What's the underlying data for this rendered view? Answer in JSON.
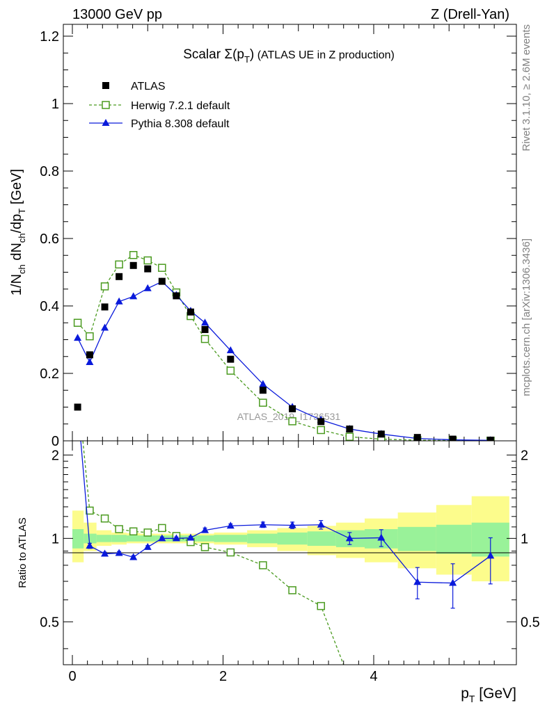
{
  "header": {
    "left": "13000 GeV pp",
    "right": "Z (Drell-Yan)"
  },
  "side_labels": {
    "rivet": "Rivet 3.1.10, ≥ 2.6M events",
    "mcplots": "mcplots.cern.ch [arXiv:1306.3436]"
  },
  "watermark": "ATLAS_2019_I1736531",
  "chart_data": [
    {
      "type": "scatter",
      "panel": "main",
      "title_main": "Scalar Σ(p",
      "title_sub": "T",
      "title_close": ")",
      "title_note": "(ATLAS UE in Z production)",
      "ylabel": "1/N_ch dN_ch/dp_T [GeV]",
      "xlim": [
        -0.1,
        5.9
      ],
      "ylim": [
        0,
        1.25
      ],
      "yticks": [
        0,
        0.2,
        0.4,
        0.6,
        0.8,
        1,
        1.2
      ],
      "ytick_labels": [
        "0",
        "0.2",
        "0.4",
        "0.6",
        "0.8",
        "1",
        "1.2"
      ],
      "legend_position": "top-left",
      "series": [
        {
          "name": "ATLAS",
          "style": "data",
          "color": "#000000",
          "marker": "filled-square",
          "x": [
            0.07,
            0.23,
            0.43,
            0.62,
            0.81,
            1.0,
            1.19,
            1.38,
            1.57,
            1.76,
            2.1,
            2.53,
            2.92,
            3.3,
            3.68,
            4.1,
            4.58,
            5.05,
            5.55
          ],
          "y": [
            0.1,
            0.255,
            0.397,
            0.487,
            0.52,
            0.51,
            0.473,
            0.43,
            0.382,
            0.33,
            0.242,
            0.15,
            0.095,
            0.057,
            0.035,
            0.02,
            0.01,
            0.005,
            0.002
          ]
        },
        {
          "name": "Herwig 7.2.1 default",
          "style": "dashed",
          "color": "#4a9a1f",
          "marker": "open-square",
          "x": [
            0.07,
            0.23,
            0.43,
            0.62,
            0.81,
            1.0,
            1.19,
            1.38,
            1.57,
            1.76,
            2.1,
            2.53,
            2.92,
            3.3,
            3.68,
            4.1,
            4.58,
            5.05,
            5.55
          ],
          "y": [
            0.35,
            0.31,
            0.458,
            0.523,
            0.551,
            0.535,
            0.513,
            0.44,
            0.37,
            0.302,
            0.208,
            0.113,
            0.058,
            0.032,
            0.012,
            0.005,
            0.002,
            0.001,
            0.0005
          ]
        },
        {
          "name": "Pythia 8.308 default",
          "style": "solid",
          "color": "#0a1adb",
          "marker": "filled-triangle",
          "x": [
            0.07,
            0.23,
            0.43,
            0.62,
            0.81,
            1.0,
            1.19,
            1.38,
            1.57,
            1.76,
            2.1,
            2.53,
            2.92,
            3.3,
            3.68,
            4.1,
            4.58,
            5.05,
            5.55
          ],
          "y": [
            0.305,
            0.233,
            0.335,
            0.413,
            0.428,
            0.452,
            0.472,
            0.432,
            0.385,
            0.35,
            0.268,
            0.168,
            0.1,
            0.062,
            0.035,
            0.02,
            0.007,
            0.003,
            0.0015
          ]
        }
      ]
    },
    {
      "type": "line",
      "panel": "ratio",
      "ylabel": "Ratio to ATLAS",
      "xlabel_main": "p",
      "xlabel_sub": "T",
      "xlabel_unit": " [GeV]",
      "xlim": [
        -0.1,
        5.9
      ],
      "ylim": [
        0.35,
        2.25
      ],
      "xticks": [
        0,
        2,
        4
      ],
      "xtick_labels": [
        "0",
        "2",
        "4"
      ],
      "yticks": [
        0.5,
        1,
        2
      ],
      "ytick_labels": [
        "0.5",
        "1",
        "2"
      ],
      "bands": {
        "bins": [
          [
            0.0,
            0.15
          ],
          [
            0.15,
            0.32
          ],
          [
            0.32,
            0.52
          ],
          [
            0.52,
            0.72
          ],
          [
            0.72,
            0.9
          ],
          [
            0.9,
            1.1
          ],
          [
            1.1,
            1.3
          ],
          [
            1.3,
            1.48
          ],
          [
            1.48,
            1.66
          ],
          [
            1.66,
            1.88
          ],
          [
            1.88,
            2.32
          ],
          [
            2.32,
            2.72
          ],
          [
            2.72,
            3.12
          ],
          [
            3.12,
            3.5
          ],
          [
            3.5,
            3.88
          ],
          [
            3.88,
            4.32
          ],
          [
            4.32,
            4.83
          ],
          [
            4.83,
            5.3
          ],
          [
            5.3,
            5.8
          ]
        ],
        "stat_lo": [
          0.92,
          0.96,
          0.97,
          0.97,
          0.975,
          0.975,
          0.975,
          0.975,
          0.975,
          0.975,
          0.97,
          0.96,
          0.95,
          0.94,
          0.93,
          0.92,
          0.9,
          0.88,
          0.86
        ],
        "stat_hi": [
          1.08,
          1.04,
          1.03,
          1.03,
          1.025,
          1.025,
          1.025,
          1.025,
          1.025,
          1.025,
          1.03,
          1.04,
          1.05,
          1.06,
          1.07,
          1.08,
          1.1,
          1.12,
          1.14
        ],
        "tot_lo": [
          0.82,
          0.9,
          0.94,
          0.95,
          0.96,
          0.96,
          0.96,
          0.96,
          0.96,
          0.96,
          0.95,
          0.93,
          0.9,
          0.87,
          0.85,
          0.82,
          0.78,
          0.74,
          0.7
        ],
        "tot_hi": [
          1.26,
          1.14,
          1.07,
          1.05,
          1.045,
          1.04,
          1.04,
          1.04,
          1.04,
          1.04,
          1.05,
          1.07,
          1.09,
          1.11,
          1.14,
          1.18,
          1.24,
          1.32,
          1.42
        ],
        "stat_color": "#99f299",
        "tot_color": "#fcfc8c"
      },
      "series": [
        {
          "name": "Herwig 7.2.1 default",
          "color": "#4a9a1f",
          "marker": "open-square",
          "x": [
            0.07,
            0.23,
            0.43,
            0.62,
            0.81,
            1.0,
            1.19,
            1.38,
            1.57,
            1.76,
            2.1,
            2.53,
            2.92,
            3.3,
            3.6
          ],
          "y": [
            3.5,
            1.26,
            1.18,
            1.08,
            1.06,
            1.05,
            1.09,
            1.02,
            0.97,
            0.93,
            0.89,
            0.8,
            0.65,
            0.57,
            0.35
          ],
          "marker_count": 14
        },
        {
          "name": "Pythia 8.308 default",
          "color": "#0a1adb",
          "marker": "filled-triangle",
          "x": [
            0.07,
            0.23,
            0.43,
            0.62,
            0.81,
            1.0,
            1.19,
            1.38,
            1.57,
            1.76,
            2.1,
            2.53,
            2.92,
            3.3,
            3.68,
            4.1,
            4.58,
            5.05,
            5.55
          ],
          "y": [
            3.05,
            0.94,
            0.88,
            0.885,
            0.855,
            0.93,
            1.0,
            1.0,
            1.005,
            1.07,
            1.11,
            1.12,
            1.115,
            1.12,
            1.0,
            1.005,
            0.695,
            0.69,
            0.865
          ],
          "err_lo": [
            0,
            0.02,
            0.012,
            0.012,
            0.012,
            0.012,
            0.012,
            0.012,
            0.012,
            0.02,
            0.018,
            0.025,
            0.03,
            0.04,
            0.05,
            0.07,
            0.09,
            0.13,
            0.18
          ],
          "err_hi": [
            0,
            0.02,
            0.012,
            0.012,
            0.012,
            0.012,
            0.012,
            0.012,
            0.012,
            0.02,
            0.018,
            0.025,
            0.03,
            0.04,
            0.05,
            0.07,
            0.09,
            0.12,
            0.14
          ]
        }
      ]
    }
  ]
}
